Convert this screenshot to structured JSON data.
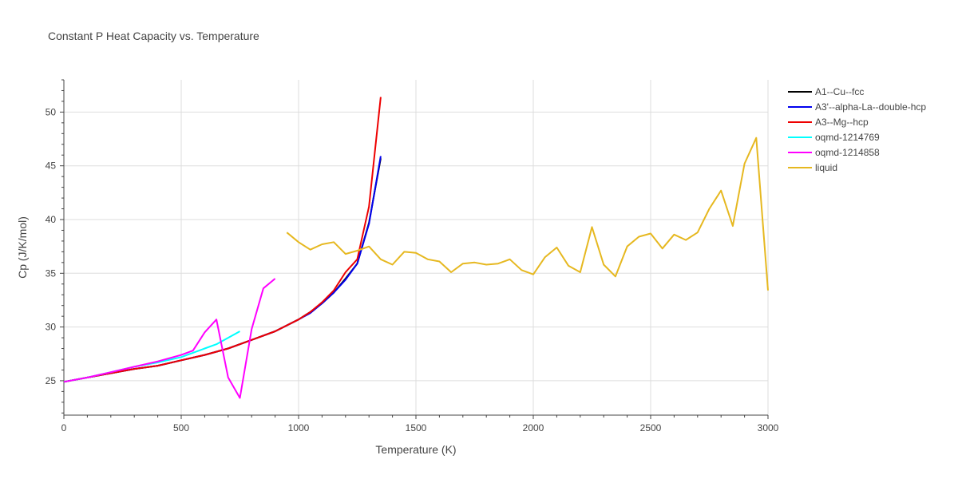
{
  "chart_data": {
    "type": "line",
    "title": "Constant P Heat Capacity vs. Temperature",
    "xlabel": "Temperature (K)",
    "ylabel": "Cp (J/K/mol)",
    "xlim": [
      0,
      3000
    ],
    "ylim": [
      21.8,
      53
    ],
    "x_ticks": [
      0,
      500,
      1000,
      1500,
      2000,
      2500,
      3000
    ],
    "x_tick_labels": [
      "0",
      "500",
      "1000",
      "1500",
      "2000",
      "2500",
      "3000"
    ],
    "y_ticks": [
      25,
      30,
      35,
      40,
      45,
      50
    ],
    "y_tick_labels": [
      "25",
      "30",
      "35",
      "40",
      "45",
      "50"
    ],
    "grid": true,
    "legend_position": "top-right",
    "series": [
      {
        "name": "A1--Cu--fcc",
        "color": "#000000",
        "x": [
          0,
          100,
          200,
          300,
          400,
          500,
          600,
          700,
          800,
          900,
          1000,
          1050,
          1100,
          1150,
          1200,
          1250,
          1300,
          1350
        ],
        "y": [
          24.9,
          25.3,
          25.7,
          26.1,
          26.4,
          26.9,
          27.4,
          28.0,
          28.8,
          29.6,
          30.7,
          31.4,
          32.2,
          33.2,
          34.5,
          35.9,
          39.7,
          45.7
        ]
      },
      {
        "name": "A3'--alpha-La--double-hcp",
        "color": "#0000ee",
        "x": [
          0,
          100,
          200,
          300,
          400,
          500,
          600,
          700,
          800,
          900,
          1000,
          1050,
          1100,
          1150,
          1200,
          1250,
          1300,
          1350
        ],
        "y": [
          24.9,
          25.3,
          25.7,
          26.1,
          26.4,
          26.9,
          27.4,
          28.0,
          28.8,
          29.6,
          30.7,
          31.3,
          32.2,
          33.2,
          34.4,
          35.9,
          39.6,
          45.9
        ]
      },
      {
        "name": "A3--Mg--hcp",
        "color": "#ee0000",
        "x": [
          0,
          100,
          200,
          300,
          400,
          500,
          600,
          700,
          800,
          900,
          1000,
          1050,
          1100,
          1150,
          1200,
          1250,
          1300,
          1350
        ],
        "y": [
          24.9,
          25.3,
          25.7,
          26.1,
          26.4,
          26.9,
          27.4,
          28.0,
          28.8,
          29.6,
          30.7,
          31.4,
          32.3,
          33.4,
          35.1,
          36.3,
          41.2,
          51.4
        ]
      },
      {
        "name": "oqmd-1214769",
        "color": "#00ffff",
        "x": [
          0,
          100,
          200,
          300,
          400,
          500,
          550,
          600,
          650,
          700,
          750
        ],
        "y": [
          24.9,
          25.3,
          25.8,
          26.3,
          26.7,
          27.2,
          27.6,
          28.0,
          28.4,
          29.0,
          29.6
        ]
      },
      {
        "name": "oqmd-1214858",
        "color": "#ff00ff",
        "x": [
          0,
          100,
          200,
          300,
          400,
          500,
          550,
          600,
          650,
          700,
          750,
          800,
          850,
          900
        ],
        "y": [
          24.9,
          25.3,
          25.8,
          26.3,
          26.8,
          27.4,
          27.8,
          29.5,
          30.7,
          25.3,
          23.4,
          29.8,
          33.6,
          34.5
        ]
      },
      {
        "name": "liquid",
        "color": "#e6b820",
        "x": [
          950,
          1000,
          1050,
          1100,
          1150,
          1200,
          1250,
          1300,
          1350,
          1400,
          1450,
          1500,
          1550,
          1600,
          1650,
          1700,
          1750,
          1800,
          1850,
          1900,
          1950,
          2000,
          2050,
          2100,
          2150,
          2200,
          2250,
          2300,
          2350,
          2400,
          2450,
          2500,
          2550,
          2600,
          2650,
          2700,
          2750,
          2800,
          2850,
          2900,
          2950,
          3000
        ],
        "y": [
          38.8,
          37.9,
          37.2,
          37.7,
          37.9,
          36.8,
          37.1,
          37.5,
          36.3,
          35.8,
          37.0,
          36.9,
          36.3,
          36.1,
          35.1,
          35.9,
          36.0,
          35.8,
          35.9,
          36.3,
          35.3,
          34.9,
          36.5,
          37.4,
          35.7,
          35.1,
          39.3,
          35.8,
          34.7,
          37.5,
          38.4,
          38.7,
          37.3,
          38.6,
          38.1,
          38.8,
          41.0,
          42.7,
          39.4,
          45.2,
          47.6,
          33.4
        ]
      }
    ]
  }
}
